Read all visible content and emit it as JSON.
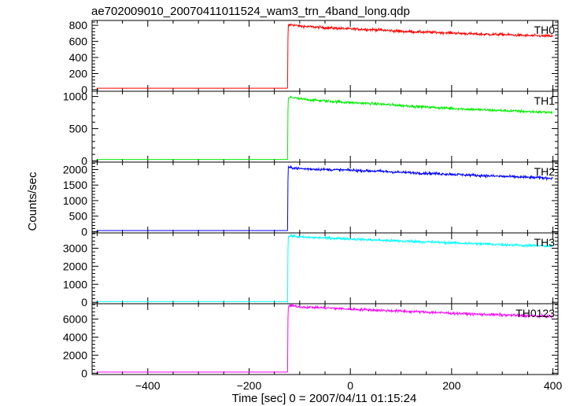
{
  "title": "ae702009010_20070411011524_wam3_trn_4band_long.qdp",
  "xlabel": "Time [sec] 0 = 2007/04/11 01:15:24",
  "ylabel": "Counts/sec",
  "colors": {
    "TH0": "#ff0000",
    "TH1": "#00ee00",
    "TH2": "#0000ff",
    "TH3": "#00ffff",
    "TH0123": "#ff00ff",
    "frame": "#000000"
  },
  "chart_data": {
    "type": "line",
    "title": "ae702009010_20070411011524_wam3_trn_4band_long.qdp",
    "xlabel": "Time [sec] 0 = 2007/04/11 01:15:24",
    "ylabel": "Counts/sec",
    "xlim": [
      -510,
      410
    ],
    "x_ticks": [
      -400,
      -200,
      0,
      200,
      400
    ],
    "x_tick_labels": [
      "−400",
      "−200",
      "0",
      "200",
      "400"
    ],
    "grid": false,
    "legend": "none",
    "shared_x": true,
    "panels": [
      {
        "name": "TH0",
        "color": "#ff0000",
        "ylim": [
          -20,
          860
        ],
        "y_ticks": [
          0,
          200,
          400,
          600,
          800
        ],
        "y_tick_labels": [
          "0",
          "200",
          "400",
          "600",
          "800"
        ],
        "series": [
          {
            "name": "TH0",
            "x": [
              -500,
              -124,
              -123,
              -118,
              -100,
              -50,
              0,
              50,
              100,
              150,
              200,
              250,
              300,
              350,
              400
            ],
            "y": [
              18,
              18,
              790,
              810,
              790,
              770,
              755,
              745,
              725,
              715,
              705,
              690,
              685,
              672,
              665
            ]
          }
        ]
      },
      {
        "name": "TH1",
        "color": "#00ee00",
        "ylim": [
          -20,
          1080
        ],
        "y_ticks": [
          0,
          500,
          1000
        ],
        "y_tick_labels": [
          "0",
          "500",
          "1000"
        ],
        "series": [
          {
            "name": "TH1",
            "x": [
              -500,
              -124,
              -123,
              -118,
              -100,
              -50,
              0,
              50,
              100,
              150,
              200,
              250,
              300,
              350,
              400
            ],
            "y": [
              22,
              22,
              960,
              990,
              960,
              930,
              905,
              885,
              860,
              835,
              815,
              795,
              780,
              765,
              750
            ]
          }
        ]
      },
      {
        "name": "TH2",
        "color": "#0000ff",
        "ylim": [
          -40,
          2240
        ],
        "y_ticks": [
          0,
          500,
          1000,
          1500,
          2000
        ],
        "y_tick_labels": [
          "0",
          "500",
          "1000",
          "1500",
          "2000"
        ],
        "series": [
          {
            "name": "TH2",
            "x": [
              -500,
              -124,
              -123,
              -118,
              -100,
              -50,
              0,
              50,
              100,
              150,
              200,
              250,
              300,
              350,
              400
            ],
            "y": [
              35,
              35,
              2050,
              2070,
              2030,
              2000,
              1980,
              1950,
              1910,
              1880,
              1850,
              1810,
              1780,
              1750,
              1720
            ]
          }
        ]
      },
      {
        "name": "TH3",
        "color": "#00ffff",
        "ylim": [
          -80,
          3850
        ],
        "y_ticks": [
          0,
          1000,
          2000,
          3000
        ],
        "y_tick_labels": [
          "0",
          "1000",
          "2000",
          "3000"
        ],
        "series": [
          {
            "name": "TH3",
            "x": [
              -500,
              -124,
              -123,
              -118,
              -100,
              -50,
              0,
              50,
              100,
              150,
              200,
              250,
              300,
              350,
              400
            ],
            "y": [
              40,
              40,
              3600,
              3700,
              3620,
              3570,
              3520,
              3450,
              3400,
              3350,
              3300,
              3250,
              3200,
              3150,
              3120
            ]
          }
        ]
      },
      {
        "name": "TH0123",
        "color": "#ff00ff",
        "ylim": [
          -150,
          7700
        ],
        "y_ticks": [
          0,
          2000,
          4000,
          6000
        ],
        "y_tick_labels": [
          "0",
          "2000",
          "4000",
          "6000"
        ],
        "series": [
          {
            "name": "TH0123",
            "x": [
              -500,
              -124,
              -123,
              -118,
              -100,
              -50,
              0,
              50,
              100,
              150,
              200,
              250,
              300,
              350,
              400
            ],
            "y": [
              120,
              120,
              7400,
              7500,
              7350,
              7250,
              7100,
              6990,
              6880,
              6770,
              6650,
              6540,
              6460,
              6370,
              6300
            ]
          }
        ]
      }
    ]
  }
}
